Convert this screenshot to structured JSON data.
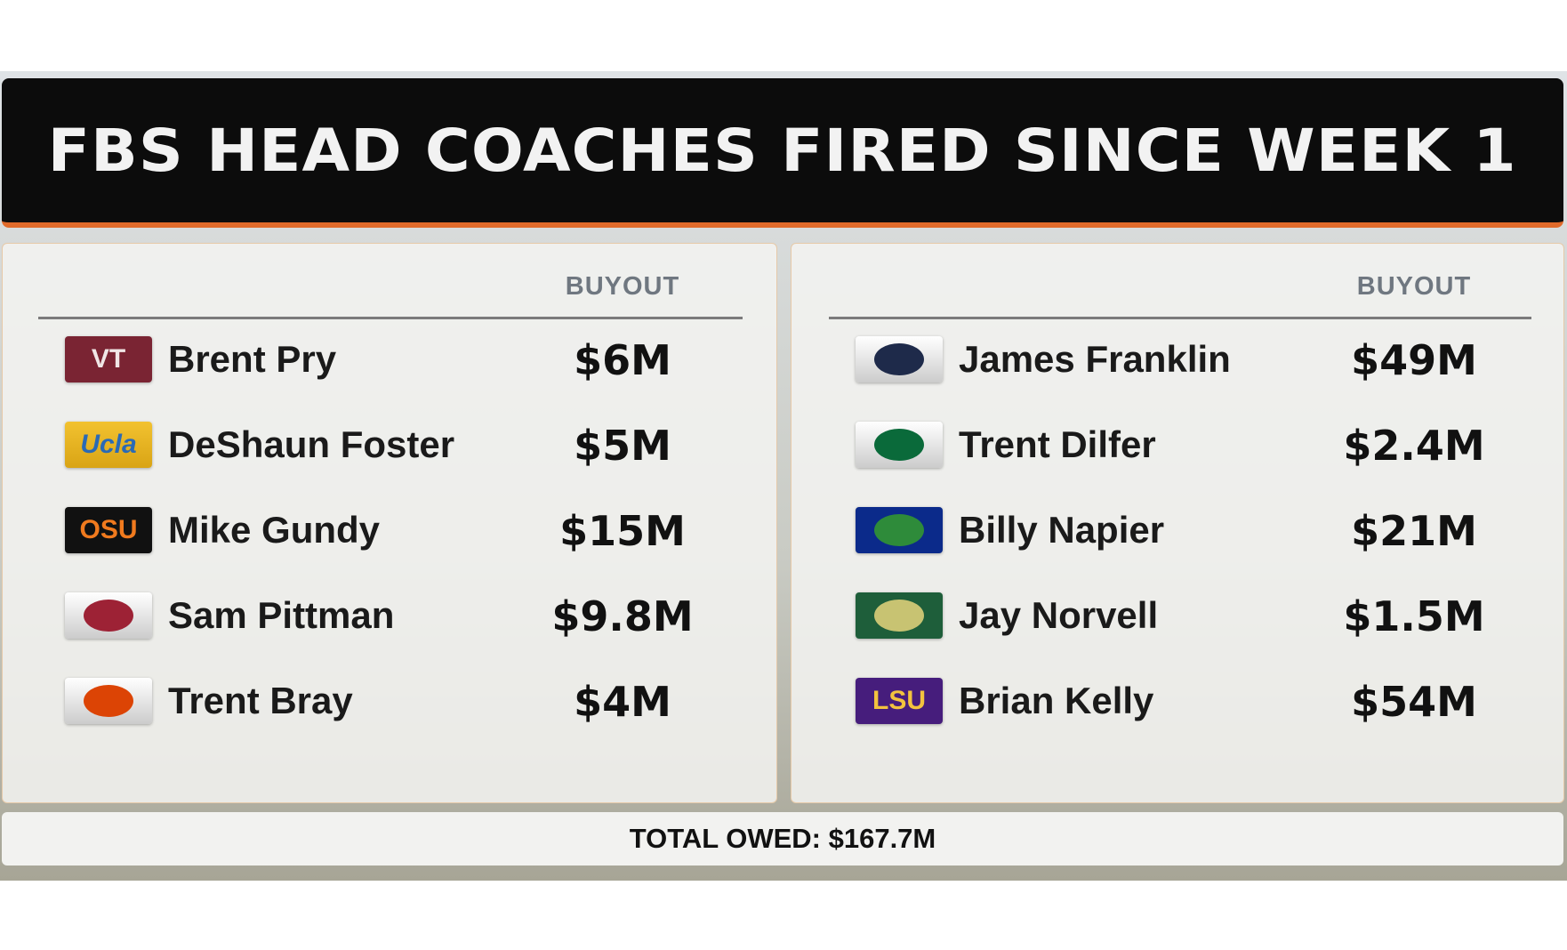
{
  "title": "FBS HEAD COACHES FIRED SINCE WEEK 1",
  "panels": [
    {
      "column_header": "BUYOUT",
      "rows": [
        {
          "logo": "VT",
          "coach": "Brent Pry",
          "buyout": "$6M"
        },
        {
          "logo": "Ucla",
          "coach": "DeShaun Foster",
          "buyout": "$5M"
        },
        {
          "logo": "OSU",
          "coach": "Mike Gundy",
          "buyout": "$15M"
        },
        {
          "coach": "Sam Pittman",
          "buyout": "$9.8M"
        },
        {
          "coach": "Trent Bray",
          "buyout": "$4M"
        }
      ]
    },
    {
      "column_header": "BUYOUT",
      "rows": [
        {
          "coach": "James Franklin",
          "buyout": "$49M"
        },
        {
          "coach": "Trent Dilfer",
          "buyout": "$2.4M"
        },
        {
          "coach": "Billy Napier",
          "buyout": "$21M"
        },
        {
          "coach": "Jay Norvell",
          "buyout": "$1.5M"
        },
        {
          "logo": "LSU",
          "coach": "Brian Kelly",
          "buyout": "$54M"
        }
      ]
    }
  ],
  "footer": "TOTAL OWED: $167.7M"
}
